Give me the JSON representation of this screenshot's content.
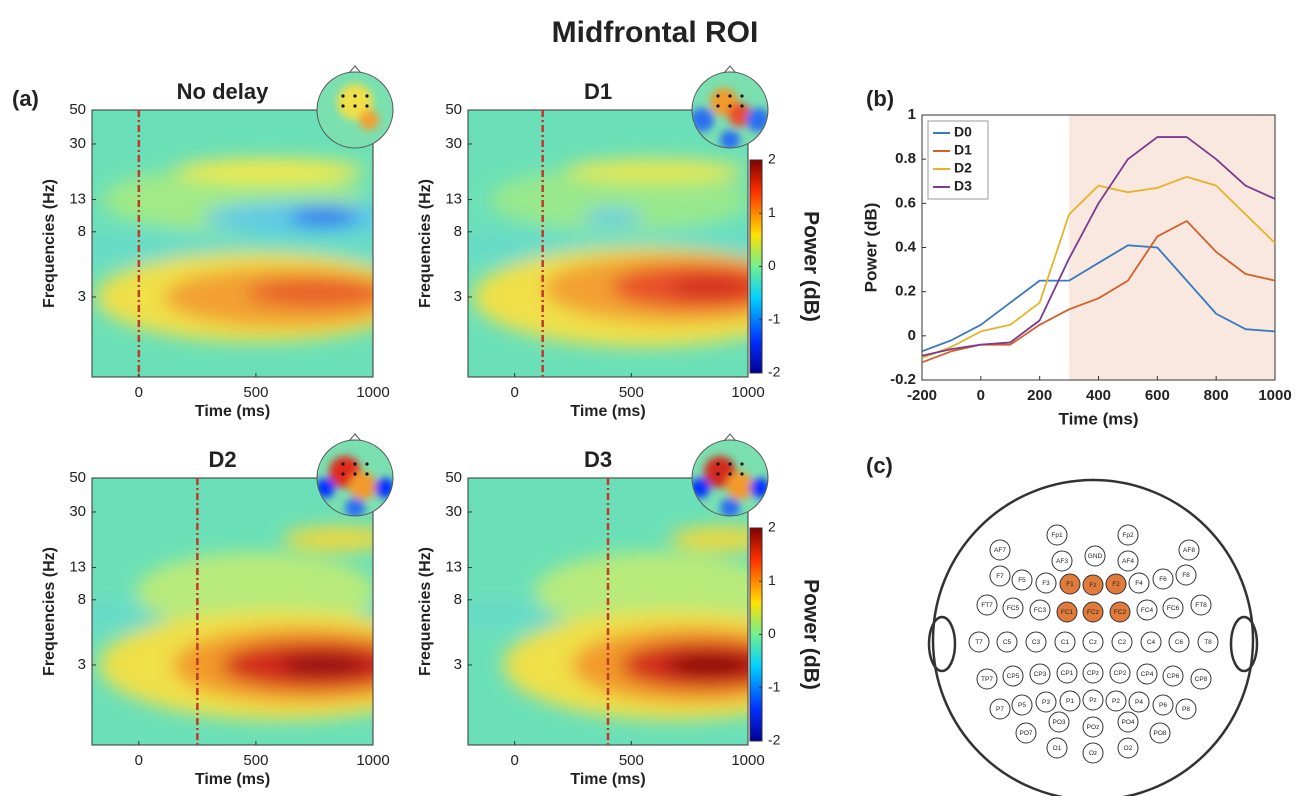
{
  "title": "Midfrontal ROI",
  "panel_labels": [
    "(a)",
    "(b)",
    "(c)"
  ],
  "chart_data": [
    {
      "type": "heatmap",
      "title": "No delay",
      "xlabel": "Time (ms)",
      "ylabel": "Frequencies (Hz)",
      "xlim": [
        -200,
        1000
      ],
      "xticks": [
        0,
        500,
        1000
      ],
      "ylim": [
        0.9,
        50
      ],
      "yticks": [
        3,
        8,
        13,
        30,
        50
      ],
      "log_y": true,
      "event_x": 0,
      "event_color": "#c0392b"
    },
    {
      "type": "heatmap",
      "title": "D1",
      "xlabel": "Time (ms)",
      "ylabel": "Frequencies (Hz)",
      "xlim": [
        -200,
        1000
      ],
      "xticks": [
        0,
        500,
        1000
      ],
      "ylim": [
        0.9,
        50
      ],
      "yticks": [
        3,
        8,
        13,
        30,
        50
      ],
      "log_y": true,
      "event_x": 120,
      "event_color": "#c0392b",
      "colorbar": {
        "label": "Power (dB)",
        "clim": [
          -2,
          2
        ],
        "ticks": [
          -2,
          -1,
          0,
          1,
          2
        ]
      }
    },
    {
      "type": "heatmap",
      "title": "D2",
      "xlabel": "Time (ms)",
      "ylabel": "Frequencies (Hz)",
      "xlim": [
        -200,
        1000
      ],
      "xticks": [
        0,
        500,
        1000
      ],
      "ylim": [
        0.9,
        50
      ],
      "yticks": [
        3,
        8,
        13,
        30,
        50
      ],
      "log_y": true,
      "event_x": 250,
      "event_color": "#c0392b"
    },
    {
      "type": "heatmap",
      "title": "D3",
      "xlabel": "Time (ms)",
      "ylabel": "Frequencies (Hz)",
      "xlim": [
        -200,
        1000
      ],
      "xticks": [
        0,
        500,
        1000
      ],
      "ylim": [
        0.9,
        50
      ],
      "yticks": [
        3,
        8,
        13,
        30,
        50
      ],
      "log_y": true,
      "event_x": 400,
      "event_color": "#c0392b",
      "colorbar": {
        "label": "Power (dB)",
        "clim": [
          -2,
          2
        ],
        "ticks": [
          -2,
          -1,
          0,
          1,
          2
        ]
      }
    },
    {
      "type": "line",
      "xlabel": "Time (ms)",
      "ylabel": "Power (dB)",
      "xlim": [
        -200,
        1000
      ],
      "xticks": [
        -200,
        0,
        200,
        400,
        600,
        800,
        1000
      ],
      "ylim": [
        -0.2,
        1
      ],
      "yticks": [
        -0.2,
        0,
        0.2,
        0.4,
        0.6,
        0.8,
        1
      ],
      "shade": [
        300,
        1000
      ],
      "shade_color": "#f9e8df",
      "legend": "upper left",
      "x": [
        -200,
        -100,
        0,
        100,
        200,
        300,
        400,
        500,
        600,
        700,
        800,
        900,
        1000
      ],
      "series": [
        {
          "name": "D0",
          "color": "#3a78c0",
          "values": [
            -0.07,
            -0.02,
            0.05,
            0.15,
            0.25,
            0.25,
            0.33,
            0.41,
            0.4,
            0.25,
            0.1,
            0.03,
            0.02
          ]
        },
        {
          "name": "D1",
          "color": "#d35f2a",
          "values": [
            -0.12,
            -0.07,
            -0.04,
            -0.04,
            0.05,
            0.12,
            0.17,
            0.25,
            0.45,
            0.52,
            0.38,
            0.28,
            0.25
          ]
        },
        {
          "name": "D2",
          "color": "#e8b22a",
          "values": [
            -0.1,
            -0.05,
            0.02,
            0.05,
            0.15,
            0.55,
            0.68,
            0.65,
            0.67,
            0.72,
            0.68,
            0.55,
            0.42
          ]
        },
        {
          "name": "D3",
          "color": "#7d3a8f",
          "values": [
            -0.09,
            -0.06,
            -0.04,
            -0.03,
            0.07,
            0.35,
            0.6,
            0.8,
            0.9,
            0.9,
            0.8,
            0.68,
            0.62
          ]
        }
      ]
    }
  ],
  "electrode_map": {
    "electrodes": [
      {
        "name": "Fp1",
        "highlighted": false
      },
      {
        "name": "Fp2",
        "highlighted": false
      },
      {
        "name": "AF7",
        "highlighted": false
      },
      {
        "name": "AF3",
        "highlighted": false
      },
      {
        "name": "GND",
        "highlighted": false
      },
      {
        "name": "AF4",
        "highlighted": false
      },
      {
        "name": "AF8",
        "highlighted": false
      },
      {
        "name": "F7",
        "highlighted": false
      },
      {
        "name": "F5",
        "highlighted": false
      },
      {
        "name": "F3",
        "highlighted": false
      },
      {
        "name": "F1",
        "highlighted": true
      },
      {
        "name": "Fz",
        "highlighted": true
      },
      {
        "name": "F2",
        "highlighted": true
      },
      {
        "name": "F4",
        "highlighted": false
      },
      {
        "name": "F6",
        "highlighted": false
      },
      {
        "name": "F8",
        "highlighted": false
      },
      {
        "name": "FT7",
        "highlighted": false
      },
      {
        "name": "FC5",
        "highlighted": false
      },
      {
        "name": "FC3",
        "highlighted": false
      },
      {
        "name": "FC1",
        "highlighted": true
      },
      {
        "name": "FCz",
        "highlighted": true
      },
      {
        "name": "FC2",
        "highlighted": true
      },
      {
        "name": "FC4",
        "highlighted": false
      },
      {
        "name": "FC6",
        "highlighted": false
      },
      {
        "name": "FT8",
        "highlighted": false
      },
      {
        "name": "T7",
        "highlighted": false
      },
      {
        "name": "C5",
        "highlighted": false
      },
      {
        "name": "C3",
        "highlighted": false
      },
      {
        "name": "C1",
        "highlighted": false
      },
      {
        "name": "Cz",
        "highlighted": false
      },
      {
        "name": "C2",
        "highlighted": false
      },
      {
        "name": "C4",
        "highlighted": false
      },
      {
        "name": "C6",
        "highlighted": false
      },
      {
        "name": "T8",
        "highlighted": false
      },
      {
        "name": "TP7",
        "highlighted": false
      },
      {
        "name": "CP5",
        "highlighted": false
      },
      {
        "name": "CP3",
        "highlighted": false
      },
      {
        "name": "CP1",
        "highlighted": false
      },
      {
        "name": "CPz",
        "highlighted": false
      },
      {
        "name": "CP2",
        "highlighted": false
      },
      {
        "name": "CP4",
        "highlighted": false
      },
      {
        "name": "CP6",
        "highlighted": false
      },
      {
        "name": "CP8",
        "highlighted": false
      },
      {
        "name": "P7",
        "highlighted": false
      },
      {
        "name": "P5",
        "highlighted": false
      },
      {
        "name": "P3",
        "highlighted": false
      },
      {
        "name": "P1",
        "highlighted": false
      },
      {
        "name": "Pz",
        "highlighted": false
      },
      {
        "name": "P2",
        "highlighted": false
      },
      {
        "name": "P4",
        "highlighted": false
      },
      {
        "name": "P6",
        "highlighted": false
      },
      {
        "name": "P8",
        "highlighted": false
      },
      {
        "name": "PO7",
        "highlighted": false
      },
      {
        "name": "PO3",
        "highlighted": false
      },
      {
        "name": "POz",
        "highlighted": false
      },
      {
        "name": "PO4",
        "highlighted": false
      },
      {
        "name": "PO8",
        "highlighted": false
      },
      {
        "name": "O1",
        "highlighted": false
      },
      {
        "name": "Oz",
        "highlighted": false
      },
      {
        "name": "O2",
        "highlighted": false
      }
    ]
  }
}
